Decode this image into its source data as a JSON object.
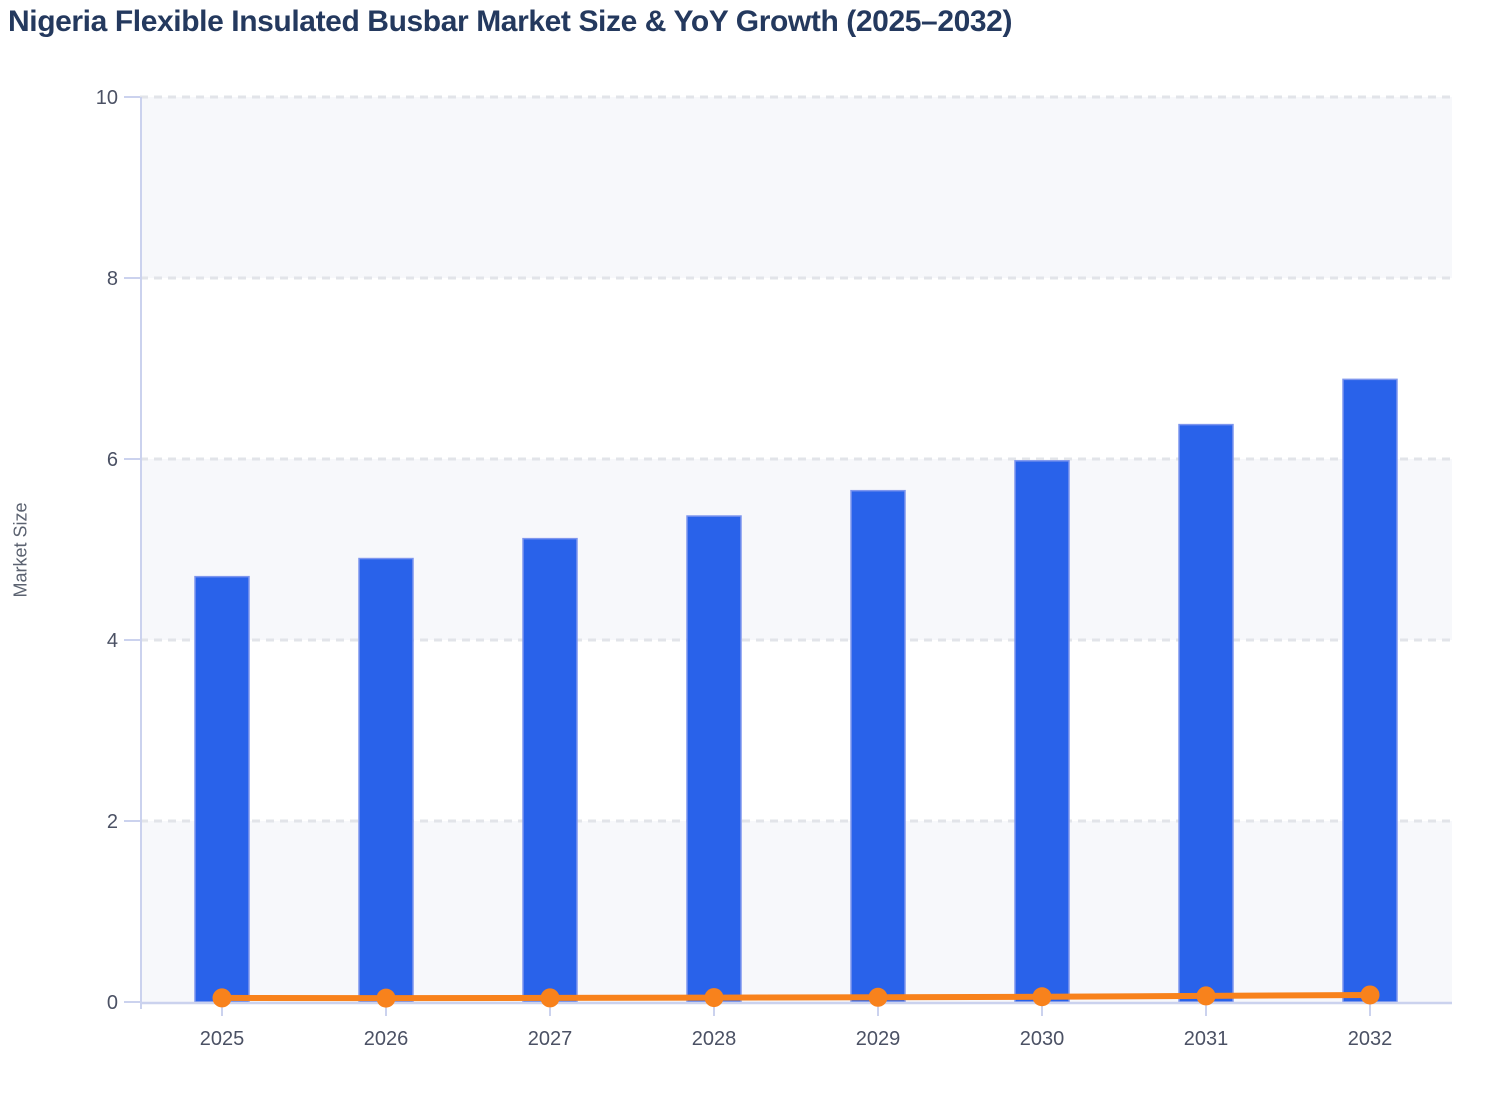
{
  "title": "Nigeria Flexible Insulated Busbar Market Size & YoY Growth (2025–2032)",
  "colors": {
    "background": "#ffffff",
    "title": "#24395e",
    "bar": "#2962ea",
    "bar_stroke": "#7e96ee",
    "line": "#f8821c",
    "axis": "#cbd2ee",
    "grid": "#e2e4e9",
    "band": "#f7f8fb",
    "tick_label": "#4b5164",
    "axis_title": "#5b6270"
  },
  "chart_data": {
    "type": "combo",
    "categories": [
      "2025",
      "2026",
      "2027",
      "2028",
      "2029",
      "2030",
      "2031",
      "2032"
    ],
    "series": [
      {
        "name": "Market Size",
        "type": "bar",
        "values": [
          4.7,
          4.9,
          5.12,
          5.37,
          5.65,
          5.98,
          6.38,
          6.88
        ]
      },
      {
        "name": "YoY Growth",
        "type": "line",
        "values": [
          0.045,
          0.043,
          0.045,
          0.049,
          0.052,
          0.058,
          0.067,
          0.078
        ]
      }
    ],
    "title": "Nigeria Flexible Insulated Busbar Market Size & YoY Growth (2025–2032)",
    "xlabel": "",
    "ylabel": "Market Size",
    "ylim": [
      0,
      10
    ],
    "y_ticks": [
      0,
      2,
      4,
      6,
      8,
      10
    ],
    "grid": "horizontal-dashed",
    "plot_bands": "alternating-light",
    "legend": "none"
  }
}
